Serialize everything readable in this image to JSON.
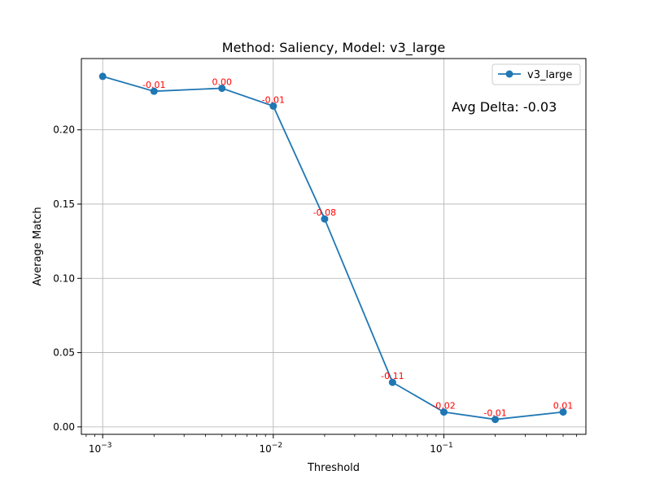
{
  "chart_data": {
    "type": "line",
    "title": "Method: Saliency, Model: v3_large",
    "xlabel": "Threshold",
    "ylabel": "Average Match",
    "xscale": "log",
    "xlim": [
      0.00075,
      0.68
    ],
    "ylim": [
      -0.005,
      0.248
    ],
    "x_ticks": [
      {
        "value": 0.001,
        "base": "10",
        "exp": "−3"
      },
      {
        "value": 0.01,
        "base": "10",
        "exp": "−2"
      },
      {
        "value": 0.1,
        "base": "10",
        "exp": "−1"
      }
    ],
    "y_ticks": [
      {
        "value": 0.0,
        "label": "0.00"
      },
      {
        "value": 0.05,
        "label": "0.05"
      },
      {
        "value": 0.1,
        "label": "0.10"
      },
      {
        "value": 0.15,
        "label": "0.15"
      },
      {
        "value": 0.2,
        "label": "0.20"
      }
    ],
    "grid": true,
    "legend_position": "top-right",
    "series": [
      {
        "name": "v3_large",
        "color": "#1f77b4",
        "x": [
          0.001,
          0.002,
          0.005,
          0.01,
          0.02,
          0.05,
          0.1,
          0.2,
          0.5
        ],
        "y": [
          0.236,
          0.226,
          0.228,
          0.216,
          0.14,
          0.03,
          0.01,
          0.005,
          0.01
        ],
        "point_labels": [
          "",
          "-0.01",
          "0.00",
          "-0.01",
          "-0.08",
          "-0.11",
          "-0.02",
          "-0.01",
          "0.01"
        ]
      }
    ],
    "annotation_color": "#ff0000",
    "annotation": "Avg Delta: -0.03"
  }
}
